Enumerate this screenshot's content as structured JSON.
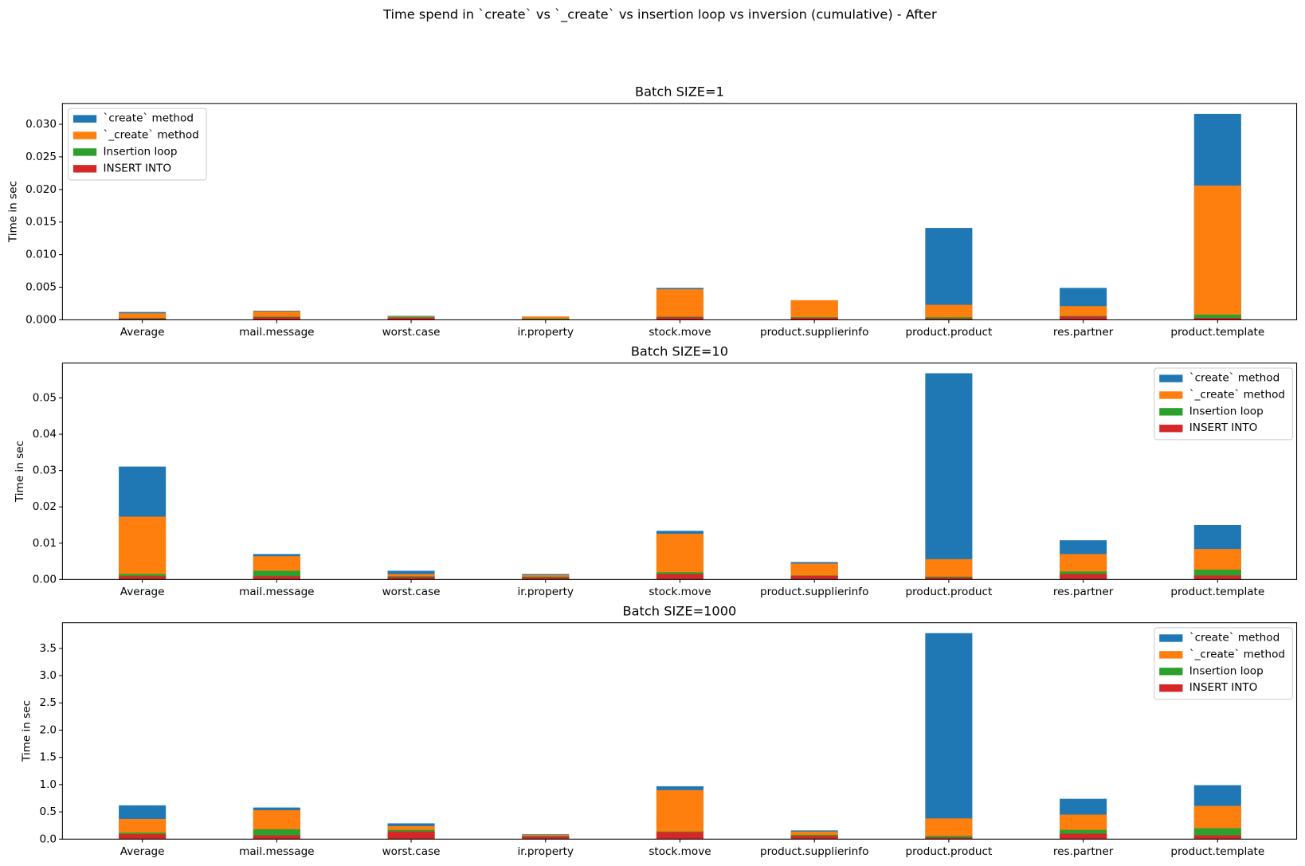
{
  "title": "Time spend in `create` vs `_create` vs insertion loop vs inversion (cumulative) - After",
  "chart_data": [
    {
      "type": "bar",
      "title": "Batch SIZE=1",
      "y_label": "Time in sec",
      "legend": "upper left",
      "categories": [
        "Average",
        "mail.message",
        "worst.case",
        "ir.property",
        "stock.move",
        "product.supplierinfo",
        "product.product",
        "res.partner",
        "product.template"
      ],
      "series": [
        {
          "name": "`create` method",
          "color": "#1f77b4",
          "values": [
            0.0012,
            0.0014,
            0.0006,
            0.0005,
            0.0049,
            0.003,
            0.0141,
            0.0049,
            0.0316
          ]
        },
        {
          "name": "`_create` method",
          "color": "#ff7f0e",
          "values": [
            0.001,
            0.0013,
            0.0005,
            0.0005,
            0.0047,
            0.003,
            0.0023,
            0.0021,
            0.0206
          ]
        },
        {
          "name": "Insertion loop",
          "color": "#2ca02c",
          "values": [
            0.0003,
            0.0005,
            0.0004,
            0.0002,
            0.0005,
            0.0004,
            0.0004,
            0.0006,
            0.0008
          ]
        },
        {
          "name": "INSERT INTO",
          "color": "#d62728",
          "values": [
            0.0002,
            0.0004,
            0.0003,
            0.0001,
            0.0004,
            0.0003,
            0.0002,
            0.0005,
            0.0003
          ]
        }
      ],
      "ylim": [
        0,
        0.0332
      ],
      "yticks": [
        {
          "value": 0,
          "label": "0.000"
        },
        {
          "value": 0.005,
          "label": "0.005"
        },
        {
          "value": 0.01,
          "label": "0.010"
        },
        {
          "value": 0.015,
          "label": "0.015"
        },
        {
          "value": 0.02,
          "label": "0.020"
        },
        {
          "value": 0.025,
          "label": "0.025"
        },
        {
          "value": 0.03,
          "label": "0.030"
        }
      ]
    },
    {
      "type": "bar",
      "title": "Batch SIZE=10",
      "y_label": "Time in sec",
      "legend": "upper right",
      "categories": [
        "Average",
        "mail.message",
        "worst.case",
        "ir.property",
        "stock.move",
        "product.supplierinfo",
        "product.product",
        "res.partner",
        "product.template"
      ],
      "series": [
        {
          "name": "`create` method",
          "color": "#1f77b4",
          "values": [
            0.0311,
            0.007,
            0.0024,
            0.0015,
            0.0134,
            0.0048,
            0.0568,
            0.0108,
            0.015
          ]
        },
        {
          "name": "`_create` method",
          "color": "#ff7f0e",
          "values": [
            0.0173,
            0.0064,
            0.0015,
            0.0012,
            0.0126,
            0.0044,
            0.0056,
            0.007,
            0.0084
          ]
        },
        {
          "name": "Insertion loop",
          "color": "#2ca02c",
          "values": [
            0.0015,
            0.0024,
            0.0009,
            0.0008,
            0.002,
            0.0011,
            0.0008,
            0.0022,
            0.0027
          ]
        },
        {
          "name": "INSERT INTO",
          "color": "#d62728",
          "values": [
            0.0009,
            0.0009,
            0.0007,
            0.0006,
            0.0015,
            0.001,
            0.0006,
            0.0015,
            0.0011
          ]
        }
      ],
      "ylim": [
        0,
        0.0596
      ],
      "yticks": [
        {
          "value": 0,
          "label": "0.00"
        },
        {
          "value": 0.01,
          "label": "0.01"
        },
        {
          "value": 0.02,
          "label": "0.02"
        },
        {
          "value": 0.03,
          "label": "0.03"
        },
        {
          "value": 0.04,
          "label": "0.04"
        },
        {
          "value": 0.05,
          "label": "0.05"
        }
      ]
    },
    {
      "type": "bar",
      "title": "Batch SIZE=1000",
      "y_label": "Time in sec",
      "legend": "upper right",
      "categories": [
        "Average",
        "mail.message",
        "worst.case",
        "ir.property",
        "stock.move",
        "product.supplierinfo",
        "product.product",
        "res.partner",
        "product.template"
      ],
      "series": [
        {
          "name": "`create` method",
          "color": "#1f77b4",
          "values": [
            0.62,
            0.58,
            0.29,
            0.09,
            0.97,
            0.16,
            3.78,
            0.74,
            0.99
          ]
        },
        {
          "name": "`_create` method",
          "color": "#ff7f0e",
          "values": [
            0.37,
            0.53,
            0.24,
            0.08,
            0.9,
            0.14,
            0.38,
            0.45,
            0.61
          ]
        },
        {
          "name": "Insertion loop",
          "color": "#2ca02c",
          "values": [
            0.12,
            0.18,
            0.17,
            0.06,
            0.14,
            0.08,
            0.06,
            0.17,
            0.2
          ]
        },
        {
          "name": "INSERT INTO",
          "color": "#d62728",
          "values": [
            0.09,
            0.07,
            0.14,
            0.05,
            0.13,
            0.06,
            0.03,
            0.1,
            0.07
          ]
        }
      ],
      "ylim": [
        0,
        3.97
      ],
      "yticks": [
        {
          "value": 0,
          "label": "0.0"
        },
        0.5,
        {
          "value": 1,
          "label": "1.0"
        },
        1.5,
        {
          "value": 2,
          "label": "2.0"
        },
        2.5,
        {
          "value": 3,
          "label": "3.0"
        },
        3.5
      ]
    }
  ]
}
